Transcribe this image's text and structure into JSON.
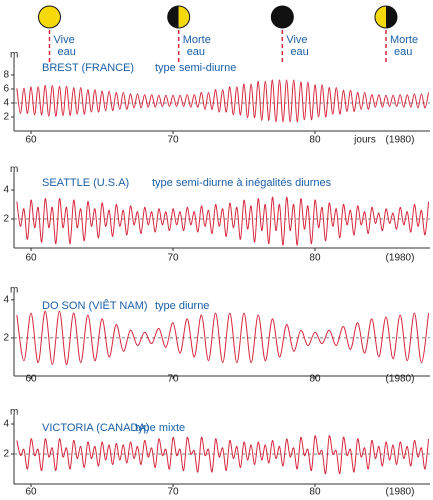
{
  "chart_data": [
    {
      "type": "line",
      "title": "BREST (FRANCE)",
      "subtitle": "type semi-diurne",
      "ylabel": "m",
      "xlabel": "jours",
      "year_label": "(1980)",
      "annotations": [
        {
          "x": 61.3,
          "phase": "full",
          "lines": [
            "Vive",
            "eau"
          ]
        },
        {
          "x": 70.4,
          "phase": "first-quarter",
          "lines": [
            "Morte",
            "eau"
          ]
        },
        {
          "x": 77.7,
          "phase": "new",
          "lines": [
            "Vive",
            "eau"
          ]
        },
        {
          "x": 85.0,
          "phase": "last-quarter",
          "lines": [
            "Morte",
            "eau"
          ]
        }
      ],
      "xlim": [
        58.8,
        88.1
      ],
      "ylim": [
        0,
        10
      ],
      "xticks": [
        60,
        70,
        80
      ],
      "yticks": [
        2,
        4,
        6,
        8
      ],
      "reference_line": 4,
      "x": [
        59,
        59.25,
        59.5,
        59.75,
        60,
        60.25,
        60.5,
        60.75,
        61,
        61.25,
        61.5,
        61.75,
        62,
        62.25,
        62.5,
        62.75,
        63,
        63.25,
        63.5,
        63.75,
        64,
        64.25,
        64.5,
        64.75,
        65,
        65.25,
        65.5,
        65.75,
        66,
        66.25,
        66.5,
        66.75,
        67,
        67.25,
        67.5,
        67.75,
        68,
        68.25,
        68.5,
        68.75,
        69,
        69.25,
        69.5,
        69.75,
        70,
        70.25,
        70.5,
        70.75,
        71,
        71.25,
        71.5,
        71.75,
        72,
        72.25,
        72.5,
        72.75,
        73,
        73.25,
        73.5,
        73.75,
        74,
        74.25,
        74.5,
        74.75,
        75,
        75.25,
        75.5,
        75.75,
        76,
        76.25,
        76.5,
        76.75,
        77,
        77.25,
        77.5,
        77.75,
        78,
        78.25,
        78.5,
        78.75,
        79,
        79.25,
        79.5,
        79.75,
        80,
        80.25,
        80.5,
        80.75,
        81,
        81.25,
        81.5,
        81.75,
        82,
        82.25,
        82.5,
        82.75,
        83,
        83.25,
        83.5,
        83.75,
        84,
        84.25,
        84.5,
        84.75,
        85,
        85.25,
        85.5,
        85.75,
        86,
        86.25,
        86.5,
        86.75,
        87,
        87.25,
        87.5,
        87.75,
        88
      ],
      "series": [
        {
          "color": "#d7263d",
          "values": [
            6.1,
            2.5,
            6.1,
            2.5,
            6.3,
            2.3,
            6.3,
            2.3,
            6.5,
            2.1,
            6.5,
            2.1,
            6.4,
            2.2,
            6.4,
            2.2,
            6.2,
            2.4,
            6.2,
            2.4,
            5.9,
            2.7,
            5.9,
            2.7,
            5.7,
            2.9,
            5.7,
            2.9,
            5.5,
            3.1,
            5.5,
            3.1,
            5.3,
            3.3,
            5.3,
            3.3,
            5.2,
            3.4,
            5.2,
            3.4,
            5.1,
            3.5,
            5.1,
            3.5,
            5.1,
            3.5,
            5.1,
            3.5,
            5.2,
            3.4,
            5.2,
            3.4,
            5.5,
            3.1,
            5.5,
            3.1,
            5.9,
            2.7,
            5.9,
            2.7,
            6.3,
            2.3,
            6.3,
            2.3,
            6.7,
            1.9,
            6.7,
            1.9,
            7.1,
            1.5,
            7.1,
            1.5,
            7.3,
            1.3,
            7.3,
            1.3,
            7.3,
            1.3,
            7.3,
            1.3,
            7.0,
            1.6,
            7.0,
            1.6,
            6.6,
            2.0,
            6.6,
            2.0,
            6.2,
            2.4,
            6.2,
            2.4,
            5.8,
            2.8,
            5.8,
            2.8,
            5.5,
            3.1,
            5.5,
            3.1,
            5.2,
            3.4,
            5.2,
            3.4,
            5.1,
            3.5,
            5.1,
            3.5,
            5.2,
            3.4,
            5.2,
            3.4,
            5.3,
            3.3,
            5.3,
            3.3,
            5.5
          ]
        }
      ]
    },
    {
      "type": "line",
      "title": "SEATTLE (U.S.A)",
      "subtitle": "type semi-diurne à inégalités diurnes",
      "ylabel": "m",
      "year_label": "(1980)",
      "xlim": [
        58.8,
        88.1
      ],
      "ylim": [
        0,
        5
      ],
      "xticks": [
        60,
        70,
        80
      ],
      "yticks": [
        2,
        4
      ],
      "reference_line": 2,
      "x": [
        59,
        59.25,
        59.5,
        59.75,
        60,
        60.25,
        60.5,
        60.75,
        61,
        61.25,
        61.5,
        61.75,
        62,
        62.25,
        62.5,
        62.75,
        63,
        63.25,
        63.5,
        63.75,
        64,
        64.25,
        64.5,
        64.75,
        65,
        65.25,
        65.5,
        65.75,
        66,
        66.25,
        66.5,
        66.75,
        67,
        67.25,
        67.5,
        67.75,
        68,
        68.25,
        68.5,
        68.75,
        69,
        69.25,
        69.5,
        69.75,
        70,
        70.25,
        70.5,
        70.75,
        71,
        71.25,
        71.5,
        71.75,
        72,
        72.25,
        72.5,
        72.75,
        73,
        73.25,
        73.5,
        73.75,
        74,
        74.25,
        74.5,
        74.75,
        75,
        75.25,
        75.5,
        75.75,
        76,
        76.25,
        76.5,
        76.75,
        77,
        77.25,
        77.5,
        77.75,
        78,
        78.25,
        78.5,
        78.75,
        79,
        79.25,
        79.5,
        79.75,
        80,
        80.25,
        80.5,
        80.75,
        81,
        81.25,
        81.5,
        81.75,
        82,
        82.25,
        82.5,
        82.75,
        83,
        83.25,
        83.5,
        83.75,
        84,
        84.25,
        84.5,
        84.75,
        85,
        85.25,
        85.5,
        85.75,
        86,
        86.25,
        86.5,
        86.75,
        87,
        87.25,
        87.5,
        87.75,
        88
      ],
      "series": [
        {
          "color": "#d7263d",
          "values": [
            3.2,
            1.5,
            2.7,
            0.6,
            3.3,
            1.4,
            2.8,
            0.4,
            3.4,
            1.4,
            2.8,
            0.3,
            3.4,
            1.4,
            2.8,
            0.3,
            3.3,
            1.4,
            2.7,
            0.5,
            3.2,
            1.5,
            2.7,
            0.7,
            3.1,
            1.5,
            2.6,
            0.8,
            3.0,
            1.5,
            2.6,
            0.9,
            2.9,
            1.6,
            2.5,
            1.0,
            2.8,
            1.6,
            2.5,
            1.1,
            2.7,
            1.6,
            2.5,
            1.2,
            2.7,
            1.6,
            2.5,
            1.2,
            2.8,
            1.6,
            2.5,
            1.1,
            2.9,
            1.5,
            2.6,
            1.0,
            3.0,
            1.5,
            2.7,
            0.8,
            3.1,
            1.4,
            2.8,
            0.6,
            3.3,
            1.3,
            2.9,
            0.4,
            3.4,
            1.2,
            3.0,
            0.3,
            3.5,
            1.2,
            3.0,
            0.2,
            3.5,
            1.2,
            3.0,
            0.2,
            3.4,
            1.3,
            2.9,
            0.3,
            3.3,
            1.4,
            2.8,
            0.5,
            3.1,
            1.5,
            2.7,
            0.7,
            3.0,
            1.6,
            2.6,
            0.9,
            2.9,
            1.6,
            2.5,
            1.0,
            2.8,
            1.7,
            2.4,
            1.2,
            2.7,
            1.7,
            2.4,
            1.3,
            2.8,
            1.6,
            2.5,
            1.1,
            3.0,
            1.5,
            2.6,
            0.9,
            3.2
          ]
        }
      ]
    },
    {
      "type": "line",
      "title": "DO SON (VIÊT NAM)",
      "subtitle": "type diurne",
      "ylabel": "m",
      "year_label": "(1980)",
      "xlim": [
        58.8,
        88.1
      ],
      "ylim": [
        0,
        4.2
      ],
      "xticks": [
        60,
        70,
        80
      ],
      "yticks": [
        2,
        4
      ],
      "reference_line": 2,
      "x": [
        59,
        59.5,
        60,
        60.5,
        61,
        61.5,
        62,
        62.5,
        63,
        63.5,
        64,
        64.5,
        65,
        65.5,
        66,
        66.5,
        67,
        67.5,
        68,
        68.5,
        69,
        69.5,
        70,
        70.5,
        71,
        71.5,
        72,
        72.5,
        73,
        73.5,
        74,
        74.5,
        75,
        75.5,
        76,
        76.5,
        77,
        77.5,
        78,
        78.5,
        79,
        79.5,
        80,
        80.5,
        81,
        81.5,
        82,
        82.5,
        83,
        83.5,
        84,
        84.5,
        85,
        85.5,
        86,
        86.5,
        87,
        87.5,
        88
      ],
      "series": [
        {
          "color": "#d7263d",
          "values": [
            3.2,
            0.8,
            3.3,
            0.7,
            3.4,
            0.6,
            3.4,
            0.6,
            3.3,
            0.7,
            3.2,
            0.8,
            3.0,
            1.0,
            2.7,
            1.3,
            2.4,
            1.6,
            2.3,
            1.7,
            2.5,
            1.5,
            2.8,
            1.2,
            3.0,
            1.0,
            3.2,
            0.8,
            3.3,
            0.7,
            3.3,
            0.7,
            3.3,
            0.7,
            3.2,
            0.8,
            3.0,
            1.0,
            2.7,
            1.3,
            2.4,
            1.6,
            2.3,
            1.7,
            2.4,
            1.6,
            2.6,
            1.4,
            2.8,
            1.2,
            3.0,
            1.0,
            3.1,
            0.9,
            3.2,
            0.8,
            3.3,
            0.7,
            3.3
          ]
        }
      ]
    },
    {
      "type": "line",
      "title": "VICTORIA (CANADA)",
      "subtitle": "type mixte",
      "ylabel": "m",
      "year_label": "(1980)",
      "xlim": [
        58.8,
        88.1
      ],
      "ylim": [
        0,
        4.4
      ],
      "xticks": [
        60,
        70,
        80
      ],
      "yticks": [
        2,
        4
      ],
      "reference_line": 2,
      "x": [
        59,
        59.25,
        59.5,
        59.75,
        60,
        60.25,
        60.5,
        60.75,
        61,
        61.25,
        61.5,
        61.75,
        62,
        62.25,
        62.5,
        62.75,
        63,
        63.25,
        63.5,
        63.75,
        64,
        64.25,
        64.5,
        64.75,
        65,
        65.25,
        65.5,
        65.75,
        66,
        66.25,
        66.5,
        66.75,
        67,
        67.25,
        67.5,
        67.75,
        68,
        68.25,
        68.5,
        68.75,
        69,
        69.25,
        69.5,
        69.75,
        70,
        70.25,
        70.5,
        70.75,
        71,
        71.25,
        71.5,
        71.75,
        72,
        72.25,
        72.5,
        72.75,
        73,
        73.25,
        73.5,
        73.75,
        74,
        74.25,
        74.5,
        74.75,
        75,
        75.25,
        75.5,
        75.75,
        76,
        76.25,
        76.5,
        76.75,
        77,
        77.25,
        77.5,
        77.75,
        78,
        78.25,
        78.5,
        78.75,
        79,
        79.25,
        79.5,
        79.75,
        80,
        80.25,
        80.5,
        80.75,
        81,
        81.25,
        81.5,
        81.75,
        82,
        82.25,
        82.5,
        82.75,
        83,
        83.25,
        83.5,
        83.75,
        84,
        84.25,
        84.5,
        84.75,
        85,
        85.25,
        85.5,
        85.75,
        86,
        86.25,
        86.5,
        86.75,
        87,
        87.25,
        87.5,
        87.75,
        88
      ],
      "series": [
        {
          "color": "#d7263d",
          "values": [
            2.9,
            1.9,
            2.3,
            1.0,
            3.0,
            1.9,
            2.3,
            0.9,
            3.0,
            1.8,
            2.4,
            0.9,
            3.0,
            1.8,
            2.4,
            1.0,
            2.9,
            1.7,
            2.5,
            1.1,
            2.8,
            1.7,
            2.5,
            1.2,
            2.8,
            1.6,
            2.6,
            1.3,
            2.7,
            1.6,
            2.6,
            1.4,
            2.8,
            1.7,
            2.5,
            1.3,
            2.9,
            1.8,
            2.4,
            1.1,
            3.0,
            1.9,
            2.3,
            1.0,
            3.1,
            1.9,
            2.3,
            0.9,
            3.1,
            2.0,
            2.2,
            0.8,
            3.1,
            1.9,
            2.3,
            0.8,
            3.0,
            1.8,
            2.4,
            0.9,
            2.9,
            1.7,
            2.5,
            1.1,
            2.8,
            1.6,
            2.6,
            1.3,
            2.8,
            1.6,
            2.6,
            1.4,
            2.9,
            1.7,
            2.5,
            1.2,
            3.0,
            1.8,
            2.4,
            1.0,
            3.1,
            1.9,
            2.3,
            0.9,
            3.2,
            2.0,
            2.2,
            0.7,
            3.2,
            2.0,
            2.2,
            0.7,
            3.1,
            1.9,
            2.3,
            0.8,
            3.0,
            1.8,
            2.4,
            1.0,
            2.9,
            1.7,
            2.5,
            1.2,
            2.8,
            1.6,
            2.6,
            1.3,
            2.8,
            1.7,
            2.5,
            1.2,
            2.9,
            1.8,
            2.4,
            1.0,
            3.0
          ]
        }
      ]
    }
  ]
}
